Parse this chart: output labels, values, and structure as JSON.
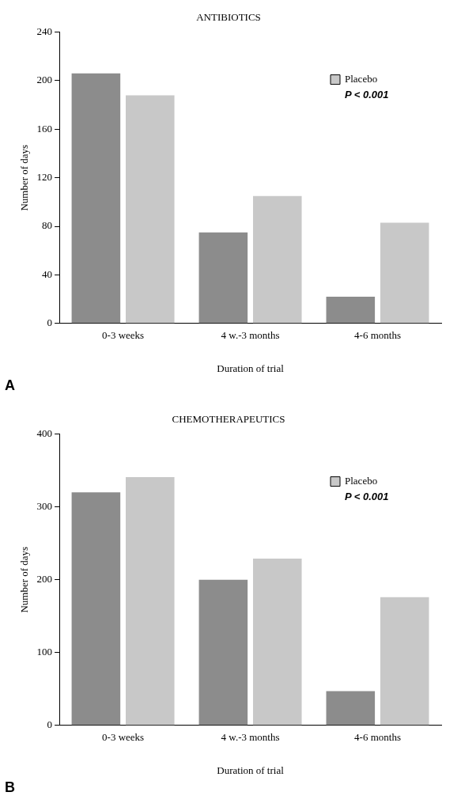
{
  "chart_data": [
    {
      "type": "bar",
      "title": "ANTIBIOTICS",
      "xlabel": "Duration of trial",
      "ylabel": "Number of days",
      "categories": [
        "0-3 weeks",
        "4 w.-3 months",
        "4-6 months"
      ],
      "series": [
        {
          "color": "#8c8c8c",
          "values": [
            206,
            75,
            22
          ]
        },
        {
          "name": "Placebo",
          "color": "#c8c8c8",
          "values": [
            188,
            105,
            83
          ]
        }
      ],
      "ylim": [
        0,
        240
      ],
      "yticks": [
        0,
        40,
        80,
        120,
        160,
        200,
        240
      ],
      "grid": false,
      "legend": "top right",
      "annotations": [
        "P < 0.001",
        "A"
      ]
    },
    {
      "type": "bar",
      "title": "CHEMOTHERAPEUTICS",
      "xlabel": "Duration of trial",
      "ylabel": "Number of days",
      "categories": [
        "0-3 weeks",
        "4 w.-3 months",
        "4-6 months"
      ],
      "series": [
        {
          "color": "#8c8c8c",
          "values": [
            320,
            200,
            47
          ]
        },
        {
          "name": "Placebo",
          "color": "#c8c8c8",
          "values": [
            341,
            229,
            176
          ]
        }
      ],
      "ylim": [
        0,
        400
      ],
      "yticks": [
        0,
        100,
        200,
        300,
        400
      ],
      "grid": false,
      "legend": "top right",
      "annotations": [
        "P < 0.001",
        "B"
      ]
    }
  ]
}
